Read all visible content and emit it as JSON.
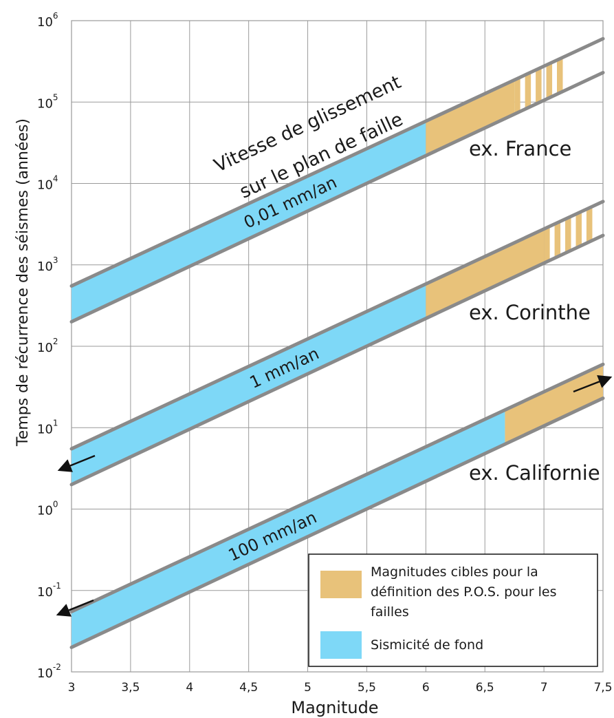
{
  "chart_data": {
    "type": "area",
    "xlabel": "Magnitude",
    "ylabel": "Temps de récurrence des séismes (années)",
    "xlim": [
      3,
      7.5
    ],
    "ylim_log10": [
      -2,
      6
    ],
    "y_scale": "log",
    "grid": true,
    "x_ticks": [
      3,
      3.5,
      4,
      4.5,
      5,
      5.5,
      6,
      6.5,
      7,
      7.5
    ],
    "x_tick_labels": [
      "3",
      "3,5",
      "4",
      "4,5",
      "5",
      "5,5",
      "6",
      "6,5",
      "7",
      "7,5"
    ],
    "y_ticks": [
      0.01,
      0.1,
      1,
      10,
      100,
      1000,
      10000,
      100000,
      1000000
    ],
    "y_tick_mantissa": "10",
    "y_tick_exponents": [
      "-2",
      "-1",
      "0",
      "1",
      "2",
      "3",
      "4",
      "5",
      "6"
    ],
    "band_header": [
      "Vitesse de glissement",
      "sur le plan de faille"
    ],
    "series": [
      {
        "name": "0,01 mm/an",
        "example": "ex. France",
        "upper": [
          [
            3,
            550
          ],
          [
            7.5,
            600000
          ]
        ],
        "lower": [
          [
            3,
            200
          ],
          [
            7.5,
            230000
          ]
        ],
        "blue_range": [
          3,
          6
        ],
        "tan_range": [
          6,
          6.75
        ],
        "stripes_range": [
          6.75,
          7.2
        ]
      },
      {
        "name": "1 mm/an",
        "example": "ex. Corinthe",
        "upper": [
          [
            3,
            5.5
          ],
          [
            7.5,
            6000
          ]
        ],
        "lower": [
          [
            3,
            2
          ],
          [
            7.5,
            2300
          ]
        ],
        "blue_range": [
          3,
          6
        ],
        "tan_range": [
          6,
          7
        ],
        "stripes_range": [
          7,
          7.45
        ]
      },
      {
        "name": "100 mm/an",
        "example": "ex. Californie",
        "upper": [
          [
            3,
            0.055
          ],
          [
            7.5,
            60
          ]
        ],
        "lower": [
          [
            3,
            0.02
          ],
          [
            7.5,
            23
          ]
        ],
        "blue_range": [
          3,
          6.67
        ],
        "tan_range": [
          6.67,
          7.5
        ],
        "stripes_range": null
      }
    ],
    "arrows": [
      "bottom-left",
      "bottom-left",
      "bottom-left",
      "top-right"
    ],
    "legend": {
      "placement": "bottom-right",
      "items": [
        {
          "label_lines": [
            "Magnitudes cibles pour la",
            "définition des P.O.S. pour les",
            "failles"
          ],
          "color": "#e8c27a"
        },
        {
          "label_lines": [
            "Sismicité de fond"
          ],
          "color": "#7ed8f7"
        }
      ]
    },
    "colors": {
      "blue": "#7ed8f7",
      "tan": "#e8c27a",
      "boundary": "#8a8a8a",
      "grid": "#9a9a9a"
    }
  }
}
